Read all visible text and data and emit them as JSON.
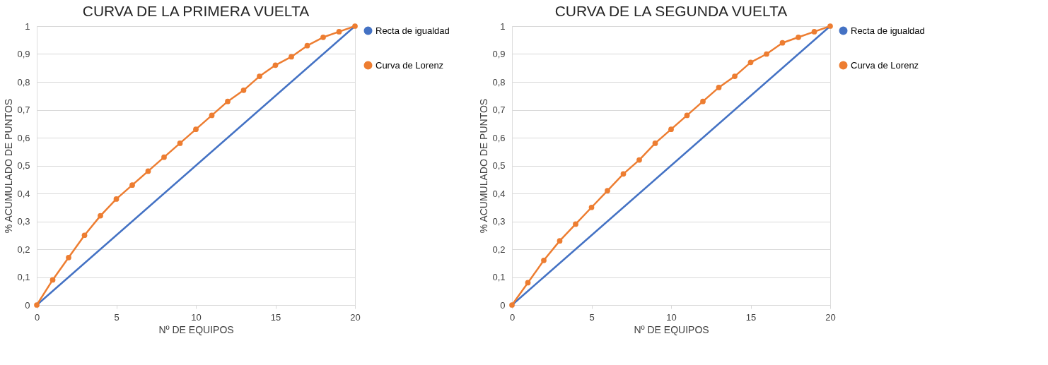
{
  "chart_data": [
    {
      "type": "line",
      "title": "CURVA DE LA PRIMERA VUELTA",
      "xlabel": "Nº DE EQUIPOS",
      "ylabel": "% ACUMULADO DE PUNTOS",
      "x": [
        0,
        1,
        2,
        3,
        4,
        5,
        6,
        7,
        8,
        9,
        10,
        11,
        12,
        13,
        14,
        15,
        16,
        17,
        18,
        19,
        20
      ],
      "series": [
        {
          "name": "Recta de igualdad",
          "color": "#4472c4",
          "marker": "none",
          "values": [
            0,
            0.05,
            0.1,
            0.15,
            0.2,
            0.25,
            0.3,
            0.35,
            0.4,
            0.45,
            0.5,
            0.55,
            0.6,
            0.65,
            0.7,
            0.75,
            0.8,
            0.85,
            0.9,
            0.95,
            1
          ]
        },
        {
          "name": "Curva de Lorenz",
          "color": "#ed7d31",
          "marker": "circle",
          "values": [
            0,
            0.09,
            0.17,
            0.25,
            0.32,
            0.38,
            0.43,
            0.48,
            0.53,
            0.58,
            0.63,
            0.68,
            0.73,
            0.77,
            0.82,
            0.86,
            0.89,
            0.93,
            0.96,
            0.98,
            1
          ]
        }
      ],
      "xlim": [
        0,
        20
      ],
      "xticks": [
        0,
        5,
        10,
        15,
        20
      ],
      "ylim": [
        0,
        1
      ],
      "yticks": [
        0,
        {
          "value": 0.1,
          "label": "0,1"
        },
        {
          "value": 0.2,
          "label": "0,2"
        },
        {
          "value": 0.3,
          "label": "0,3"
        },
        {
          "value": 0.4,
          "label": "0,4"
        },
        {
          "value": 0.5,
          "label": "0,5"
        },
        {
          "value": 0.6,
          "label": "0,6"
        },
        {
          "value": 0.7,
          "label": "0,7"
        },
        {
          "value": 0.8,
          "label": "0,8"
        },
        {
          "value": 0.9,
          "label": "0,9"
        },
        1
      ],
      "grid": "y",
      "legend": "right"
    },
    {
      "type": "line",
      "title": "CURVA DE LA SEGUNDA VUELTA",
      "xlabel": "Nº DE EQUIPOS",
      "ylabel": "% ACUMULADO DE PUNTOS",
      "x": [
        0,
        1,
        2,
        3,
        4,
        5,
        6,
        7,
        8,
        9,
        10,
        11,
        12,
        13,
        14,
        15,
        16,
        17,
        18,
        19,
        20
      ],
      "series": [
        {
          "name": "Recta de igualdad",
          "color": "#4472c4",
          "marker": "none",
          "values": [
            0,
            0.05,
            0.1,
            0.15,
            0.2,
            0.25,
            0.3,
            0.35,
            0.4,
            0.45,
            0.5,
            0.55,
            0.6,
            0.65,
            0.7,
            0.75,
            0.8,
            0.85,
            0.9,
            0.95,
            1
          ]
        },
        {
          "name": "Curva de Lorenz",
          "color": "#ed7d31",
          "marker": "circle",
          "values": [
            0,
            0.08,
            0.16,
            0.23,
            0.29,
            0.35,
            0.41,
            0.47,
            0.52,
            0.58,
            0.63,
            0.68,
            0.73,
            0.78,
            0.82,
            0.87,
            0.9,
            0.94,
            0.96,
            0.98,
            1
          ]
        }
      ],
      "xlim": [
        0,
        20
      ],
      "xticks": [
        0,
        5,
        10,
        15,
        20
      ],
      "ylim": [
        0,
        1
      ],
      "yticks": [
        0,
        {
          "value": 0.1,
          "label": "0,1"
        },
        {
          "value": 0.2,
          "label": "0,2"
        },
        {
          "value": 0.3,
          "label": "0,3"
        },
        {
          "value": 0.4,
          "label": "0,4"
        },
        {
          "value": 0.5,
          "label": "0,5"
        },
        {
          "value": 0.6,
          "label": "0,6"
        },
        {
          "value": 0.7,
          "label": "0,7"
        },
        {
          "value": 0.8,
          "label": "0,8"
        },
        {
          "value": 0.9,
          "label": "0,9"
        },
        1
      ],
      "grid": "y",
      "legend": "right"
    }
  ]
}
